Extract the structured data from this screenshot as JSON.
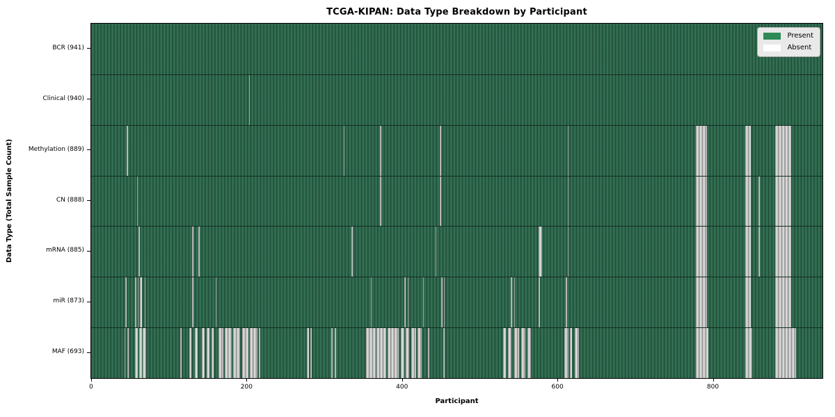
{
  "chart_data": {
    "type": "heatmap",
    "title": "TCGA-KIPAN: Data Type Breakdown by Participant",
    "xlabel": "Participant",
    "ylabel": "Data Type (Total Sample Count)",
    "x_ticks": [
      0,
      200,
      400,
      600,
      800
    ],
    "n_participants": 941,
    "grid": false,
    "legend_position": "upper right",
    "legend": [
      {
        "label": "Present",
        "color": "#2e8b57"
      },
      {
        "label": "Absent",
        "color": "#ffffff"
      }
    ],
    "colors": {
      "present_fill": "#2e8b57",
      "absent_fill": "#ffffff",
      "row_separator": "#000000"
    },
    "rows": [
      {
        "data_type": "BCR",
        "label": "BCR (941)",
        "present_count": 941,
        "absent_ranges": []
      },
      {
        "data_type": "Clinical",
        "label": "Clinical (940)",
        "present_count": 940,
        "absent_ranges": [
          [
            203,
            204
          ]
        ]
      },
      {
        "data_type": "Methylation",
        "label": "Methylation (889)",
        "present_count": 889,
        "absent_ranges": [
          [
            46,
            47
          ],
          [
            325,
            326
          ],
          [
            372,
            373
          ],
          [
            449,
            450
          ],
          [
            613,
            614
          ],
          [
            778,
            792
          ],
          [
            842,
            849
          ],
          [
            880,
            901
          ]
        ]
      },
      {
        "data_type": "CN",
        "label": "CN (888)",
        "present_count": 888,
        "absent_ranges": [
          [
            59,
            60
          ],
          [
            372,
            373
          ],
          [
            449,
            450
          ],
          [
            613,
            614
          ],
          [
            778,
            792
          ],
          [
            842,
            849
          ],
          [
            859,
            860
          ],
          [
            880,
            901
          ]
        ]
      },
      {
        "data_type": "mRNA",
        "label": "mRNA (885)",
        "present_count": 885,
        "absent_ranges": [
          [
            61,
            62
          ],
          [
            130,
            131
          ],
          [
            138,
            139
          ],
          [
            335,
            336
          ],
          [
            443,
            444
          ],
          [
            576,
            580
          ],
          [
            613,
            614
          ],
          [
            778,
            792
          ],
          [
            842,
            849
          ],
          [
            859,
            860
          ],
          [
            880,
            901
          ]
        ]
      },
      {
        "data_type": "miR",
        "label": "miR (873)",
        "present_count": 873,
        "absent_ranges": [
          [
            44,
            45
          ],
          [
            56,
            58
          ],
          [
            60,
            61
          ],
          [
            63,
            65
          ],
          [
            69,
            70
          ],
          [
            130,
            131
          ],
          [
            160,
            161
          ],
          [
            360,
            361
          ],
          [
            403,
            405
          ],
          [
            407,
            408
          ],
          [
            427,
            428
          ],
          [
            450,
            452
          ],
          [
            454,
            455
          ],
          [
            540,
            542
          ],
          [
            544,
            545
          ],
          [
            576,
            577
          ],
          [
            611,
            612
          ],
          [
            778,
            792
          ],
          [
            842,
            849
          ],
          [
            880,
            901
          ]
        ]
      },
      {
        "data_type": "MAF",
        "label": "MAF (693)",
        "present_count": 693,
        "absent_ranges": [
          [
            43,
            44
          ],
          [
            47,
            48
          ],
          [
            56,
            60
          ],
          [
            62,
            65
          ],
          [
            66,
            71
          ],
          [
            115,
            116
          ],
          [
            126,
            129
          ],
          [
            133,
            137
          ],
          [
            142,
            146
          ],
          [
            149,
            152
          ],
          [
            155,
            158
          ],
          [
            164,
            170
          ],
          [
            172,
            181
          ],
          [
            183,
            192
          ],
          [
            194,
            202
          ],
          [
            204,
            214
          ],
          [
            216,
            217
          ],
          [
            278,
            280
          ],
          [
            282,
            284
          ],
          [
            309,
            311
          ],
          [
            313,
            315
          ],
          [
            354,
            366
          ],
          [
            367,
            380
          ],
          [
            381,
            396
          ],
          [
            398,
            403
          ],
          [
            405,
            409
          ],
          [
            412,
            418
          ],
          [
            420,
            425
          ],
          [
            433,
            435
          ],
          [
            453,
            455
          ],
          [
            530,
            534
          ],
          [
            536,
            541
          ],
          [
            544,
            551
          ],
          [
            553,
            559
          ],
          [
            561,
            566
          ],
          [
            609,
            614
          ],
          [
            616,
            619
          ],
          [
            622,
            628
          ],
          [
            778,
            794
          ],
          [
            842,
            851
          ],
          [
            880,
            907
          ]
        ]
      }
    ]
  }
}
